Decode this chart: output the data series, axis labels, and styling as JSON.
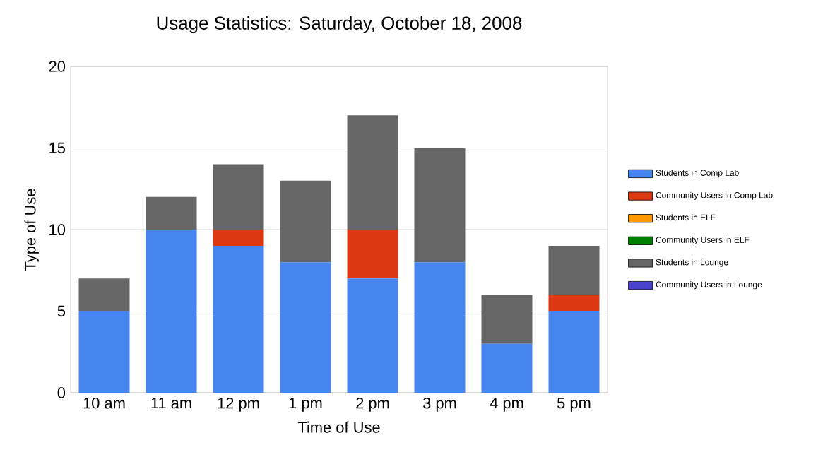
{
  "chart_data": {
    "type": "bar",
    "title": "Usage Statistics: Saturday, October 18, 2008",
    "xlabel": "Time of Use",
    "ylabel": "Type of Use",
    "categories": [
      "10 am",
      "11 am",
      "12 pm",
      "1 pm",
      "2 pm",
      "3 pm",
      "4 pm",
      "5 pm"
    ],
    "stacked": true,
    "ylim": [
      0,
      20
    ],
    "yticks": [
      0,
      5,
      10,
      15,
      20
    ],
    "grid": "y",
    "legend": "right",
    "series": [
      {
        "name": "Students in Comp Lab",
        "color": "#4684ee",
        "values": [
          5,
          10,
          9,
          8,
          7,
          8,
          3,
          5
        ]
      },
      {
        "name": "Community Users in Comp Lab",
        "color": "#dc3912",
        "values": [
          0,
          0,
          1,
          0,
          3,
          0,
          0,
          1
        ]
      },
      {
        "name": "Students in ELF",
        "color": "#ff9900",
        "values": [
          0,
          0,
          0,
          0,
          0,
          0,
          0,
          0
        ]
      },
      {
        "name": "Community Users in ELF",
        "color": "#008000",
        "values": [
          0,
          0,
          0,
          0,
          0,
          0,
          0,
          0
        ]
      },
      {
        "name": "Students in Lounge",
        "color": "#666666",
        "values": [
          2,
          2,
          4,
          5,
          7,
          7,
          3,
          3
        ]
      },
      {
        "name": "Community Users in Lounge",
        "color": "#4942cc",
        "values": [
          0,
          0,
          0,
          0,
          0,
          0,
          0,
          0
        ]
      }
    ]
  }
}
